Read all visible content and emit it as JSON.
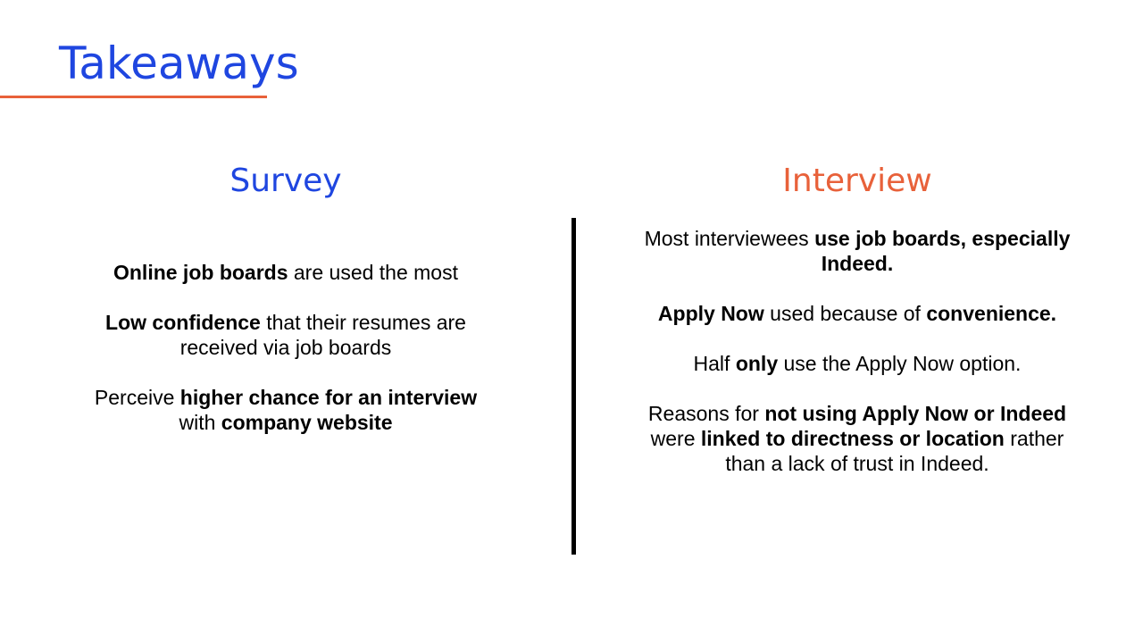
{
  "title": "Takeaways",
  "colors": {
    "title_blue": "#1f46e0",
    "accent_orange": "#e8613a"
  },
  "survey": {
    "heading": "Survey",
    "p1": {
      "b1": "Online job boards",
      "t1": " are used the most"
    },
    "p2": {
      "b1": "Low confidence",
      "t1": " that their resumes are received via job boards"
    },
    "p3": {
      "t1": "Perceive ",
      "b1": "higher chance for an interview",
      "t2": " with ",
      "b2": "company website"
    }
  },
  "interview": {
    "heading": "Interview",
    "p1": {
      "t1": "Most interviewees ",
      "b1": "use job boards, especially Indeed."
    },
    "p2": {
      "b1": "Apply Now",
      "t1": " used because of ",
      "b2": "convenience."
    },
    "p3": {
      "t1": "Half ",
      "b1": "only",
      "t2": " use the Apply Now option."
    },
    "p4": {
      "t1": "Reasons for ",
      "b1": "not using Apply Now or Indeed",
      "t2": " were ",
      "b2": "linked to directness or location",
      "t3": " rather than a lack of trust in Indeed."
    }
  }
}
